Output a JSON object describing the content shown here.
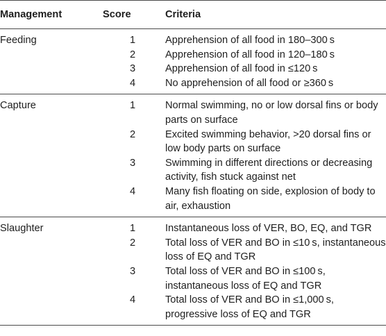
{
  "headers": {
    "management": "Management",
    "score": "Score",
    "criteria": "Criteria"
  },
  "groups": [
    {
      "name": "Feeding",
      "rows": [
        {
          "score": "1",
          "criteria": "Apprehension of all food in 180–300 s"
        },
        {
          "score": "2",
          "criteria": "Apprehension of all food in 120–180 s"
        },
        {
          "score": "3",
          "criteria": "Apprehension of all food in ≤120 s"
        },
        {
          "score": "4",
          "criteria": "No apprehension of all food or ≥360 s"
        }
      ]
    },
    {
      "name": "Capture",
      "rows": [
        {
          "score": "1",
          "criteria": "Normal swimming, no or low dorsal fins or body parts on surface"
        },
        {
          "score": "2",
          "criteria": "Excited swimming behavior, >20 dorsal fins or low body parts on surface"
        },
        {
          "score": "3",
          "criteria": "Swimming in different directions or decreasing activity, fish stuck against net"
        },
        {
          "score": "4",
          "criteria": "Many fish floating on side, explosion of body to air, exhaustion"
        }
      ]
    },
    {
      "name": "Slaughter",
      "rows": [
        {
          "score": "1",
          "criteria": "Instantaneous loss of VER, BO, EQ, and TGR"
        },
        {
          "score": "2",
          "criteria": "Total loss of VER and BO in ≤10 s, instantaneous loss of EQ and TGR"
        },
        {
          "score": "3",
          "criteria": "Total loss of VER and BO in ≤100 s, instantaneous loss of EQ and TGR"
        },
        {
          "score": "4",
          "criteria": "Total loss of VER and BO in ≤1,000 s, progressive loss of EQ and TGR"
        }
      ]
    }
  ]
}
